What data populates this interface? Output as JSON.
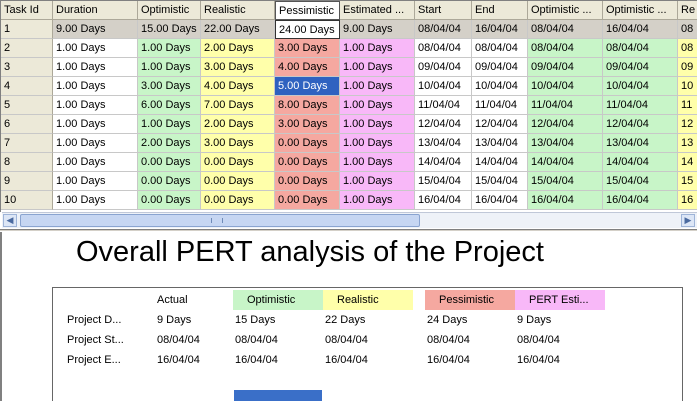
{
  "grid": {
    "columns": [
      "Task Id",
      "Duration",
      "Optimistic",
      "Realistic",
      "Pessimistic",
      "Estimated ...",
      "Start",
      "End",
      "Optimistic ...",
      "Optimistic ...",
      "Re"
    ],
    "rows": [
      [
        "1",
        "9.00 Days",
        "15.00 Days",
        "22.00 Days",
        "24.00 Days",
        "9.00 Days",
        "08/04/04",
        "16/04/04",
        "08/04/04",
        "16/04/04",
        "08"
      ],
      [
        "2",
        "1.00 Days",
        "1.00 Days",
        "2.00 Days",
        "3.00 Days",
        "1.00 Days",
        "08/04/04",
        "08/04/04",
        "08/04/04",
        "08/04/04",
        "08"
      ],
      [
        "3",
        "1.00 Days",
        "1.00 Days",
        "3.00 Days",
        "4.00 Days",
        "1.00 Days",
        "09/04/04",
        "09/04/04",
        "09/04/04",
        "09/04/04",
        "09"
      ],
      [
        "4",
        "1.00 Days",
        "3.00 Days",
        "4.00 Days",
        "5.00 Days",
        "1.00 Days",
        "10/04/04",
        "10/04/04",
        "10/04/04",
        "10/04/04",
        "10"
      ],
      [
        "5",
        "1.00 Days",
        "6.00 Days",
        "7.00 Days",
        "8.00 Days",
        "1.00 Days",
        "11/04/04",
        "11/04/04",
        "11/04/04",
        "11/04/04",
        "11"
      ],
      [
        "6",
        "1.00 Days",
        "1.00 Days",
        "2.00 Days",
        "3.00 Days",
        "1.00 Days",
        "12/04/04",
        "12/04/04",
        "12/04/04",
        "12/04/04",
        "12"
      ],
      [
        "7",
        "1.00 Days",
        "2.00 Days",
        "3.00 Days",
        "0.00 Days",
        "1.00 Days",
        "13/04/04",
        "13/04/04",
        "13/04/04",
        "13/04/04",
        "13"
      ],
      [
        "8",
        "1.00 Days",
        "0.00 Days",
        "0.00 Days",
        "0.00 Days",
        "1.00 Days",
        "14/04/04",
        "14/04/04",
        "14/04/04",
        "14/04/04",
        "14"
      ],
      [
        "9",
        "1.00 Days",
        "0.00 Days",
        "0.00 Days",
        "0.00 Days",
        "1.00 Days",
        "15/04/04",
        "15/04/04",
        "15/04/04",
        "15/04/04",
        "15"
      ],
      [
        "10",
        "1.00 Days",
        "0.00 Days",
        "0.00 Days",
        "0.00 Days",
        "1.00 Days",
        "16/04/04",
        "16/04/04",
        "16/04/04",
        "16/04/04",
        "16"
      ]
    ]
  },
  "title": "Overall PERT analysis of the Project",
  "summary": {
    "headers": [
      "",
      "Actual",
      "Optimistic",
      "Realistic",
      "Pessimistic",
      "PERT Esti..."
    ],
    "rows": [
      [
        "Project D...",
        "9 Days",
        "15 Days",
        "22 Days",
        "24 Days",
        "9 Days"
      ],
      [
        "Project St...",
        "08/04/04",
        "08/04/04",
        "08/04/04",
        "08/04/04",
        "08/04/04"
      ],
      [
        "Project E...",
        "16/04/04",
        "16/04/04",
        "16/04/04",
        "16/04/04",
        "16/04/04"
      ]
    ]
  },
  "colors": {
    "optimistic": "#c8f5c8",
    "realistic": "#ffffaa",
    "pessimistic": "#f5a8a0",
    "estimated": "#f8b8f8",
    "selection": "#2f62c0"
  },
  "scrollbar": {
    "left_arrow": "◀",
    "right_arrow": "▶"
  }
}
